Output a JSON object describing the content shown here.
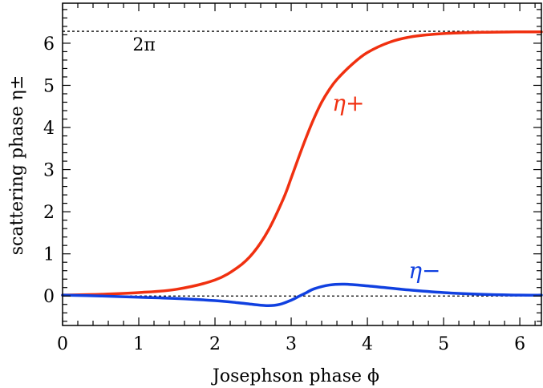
{
  "chart_data": {
    "type": "line",
    "xlabel": "Josephson phase ϕ",
    "ylabel": "scattering phase η±",
    "xlim": [
      0,
      6.2832
    ],
    "ylim": [
      -0.7,
      6.95
    ],
    "x_ticks": [
      "0",
      "1",
      "2",
      "3",
      "4",
      "5",
      "6"
    ],
    "y_ticks": [
      "0",
      "1",
      "2",
      "3",
      "4",
      "5",
      "6"
    ],
    "grid": false,
    "series": [
      {
        "name": "η+",
        "color": "#f03010",
        "x": [
          0,
          0.5,
          1.0,
          1.5,
          2.0,
          2.3,
          2.5,
          2.7,
          2.9,
          3.0,
          3.1,
          3.2,
          3.3,
          3.4,
          3.5,
          3.6,
          3.8,
          4.0,
          4.3,
          4.6,
          5.0,
          5.5,
          6.0,
          6.2832
        ],
        "y": [
          0.02,
          0.04,
          0.08,
          0.16,
          0.38,
          0.68,
          1.02,
          1.56,
          2.32,
          2.8,
          3.3,
          3.78,
          4.22,
          4.6,
          4.9,
          5.14,
          5.5,
          5.78,
          6.03,
          6.16,
          6.23,
          6.26,
          6.27,
          6.27
        ]
      },
      {
        "name": "η−",
        "color": "#1040e0",
        "x": [
          0,
          0.5,
          1.0,
          1.5,
          2.0,
          2.3,
          2.5,
          2.7,
          2.85,
          3.0,
          3.1,
          3.2,
          3.3,
          3.5,
          3.7,
          4.0,
          4.5,
          5.0,
          5.5,
          6.0,
          6.2832
        ],
        "y": [
          0.02,
          0.0,
          -0.03,
          -0.06,
          -0.11,
          -0.16,
          -0.2,
          -0.23,
          -0.2,
          -0.1,
          -0.01,
          0.08,
          0.17,
          0.26,
          0.28,
          0.24,
          0.15,
          0.08,
          0.04,
          0.02,
          0.02
        ]
      }
    ],
    "reference_lines": [
      {
        "y": 6.2832,
        "label": "2π"
      },
      {
        "y": 0
      }
    ],
    "annotations": [
      {
        "text": "η+",
        "x": 3.75,
        "y": 4.4,
        "color": "#f03010"
      },
      {
        "text": "η−",
        "x": 4.75,
        "y": 0.42,
        "color": "#1040e0"
      }
    ]
  }
}
